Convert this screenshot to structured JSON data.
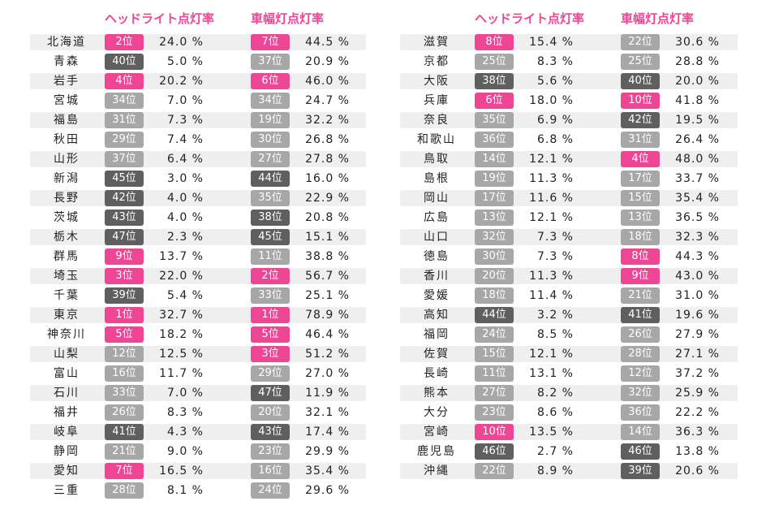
{
  "header": {
    "headlight_label": "ヘッドライト点灯率",
    "sidelight_label": "車幅灯点灯率"
  },
  "colors": {
    "pink": "#ee4595",
    "light_gray": "#a7a7a7",
    "dark_gray": "#5f5f5f"
  },
  "left_rows": [
    {
      "pref": "北海道",
      "h_rank": "2位",
      "h_pct": "24.0 %",
      "h_color": "pink",
      "s_rank": "7位",
      "s_pct": "44.5 %",
      "s_color": "pink"
    },
    {
      "pref": "青森",
      "h_rank": "40位",
      "h_pct": "5.0 %",
      "h_color": "dg",
      "s_rank": "37位",
      "s_pct": "20.9 %",
      "s_color": "lg"
    },
    {
      "pref": "岩手",
      "h_rank": "4位",
      "h_pct": "20.2 %",
      "h_color": "pink",
      "s_rank": "6位",
      "s_pct": "46.0 %",
      "s_color": "pink"
    },
    {
      "pref": "宮城",
      "h_rank": "34位",
      "h_pct": "7.0 %",
      "h_color": "lg",
      "s_rank": "34位",
      "s_pct": "24.7 %",
      "s_color": "lg"
    },
    {
      "pref": "福島",
      "h_rank": "31位",
      "h_pct": "7.3 %",
      "h_color": "lg",
      "s_rank": "19位",
      "s_pct": "32.2 %",
      "s_color": "lg"
    },
    {
      "pref": "秋田",
      "h_rank": "29位",
      "h_pct": "7.4 %",
      "h_color": "lg",
      "s_rank": "30位",
      "s_pct": "26.8 %",
      "s_color": "lg"
    },
    {
      "pref": "山形",
      "h_rank": "37位",
      "h_pct": "6.4 %",
      "h_color": "lg",
      "s_rank": "27位",
      "s_pct": "27.8 %",
      "s_color": "lg"
    },
    {
      "pref": "新潟",
      "h_rank": "45位",
      "h_pct": "3.0 %",
      "h_color": "dg",
      "s_rank": "44位",
      "s_pct": "16.0 %",
      "s_color": "dg"
    },
    {
      "pref": "長野",
      "h_rank": "42位",
      "h_pct": "4.0 %",
      "h_color": "dg",
      "s_rank": "35位",
      "s_pct": "22.9 %",
      "s_color": "lg"
    },
    {
      "pref": "茨城",
      "h_rank": "43位",
      "h_pct": "4.0 %",
      "h_color": "dg",
      "s_rank": "38位",
      "s_pct": "20.8 %",
      "s_color": "dg"
    },
    {
      "pref": "栃木",
      "h_rank": "47位",
      "h_pct": "2.3 %",
      "h_color": "dg",
      "s_rank": "45位",
      "s_pct": "15.1 %",
      "s_color": "dg"
    },
    {
      "pref": "群馬",
      "h_rank": "9位",
      "h_pct": "13.7 %",
      "h_color": "pink",
      "s_rank": "11位",
      "s_pct": "38.8 %",
      "s_color": "lg"
    },
    {
      "pref": "埼玉",
      "h_rank": "3位",
      "h_pct": "22.0 %",
      "h_color": "pink",
      "s_rank": "2位",
      "s_pct": "56.7 %",
      "s_color": "pink"
    },
    {
      "pref": "千葉",
      "h_rank": "39位",
      "h_pct": "5.4 %",
      "h_color": "dg",
      "s_rank": "33位",
      "s_pct": "25.1 %",
      "s_color": "lg"
    },
    {
      "pref": "東京",
      "h_rank": "1位",
      "h_pct": "32.7 %",
      "h_color": "pink",
      "s_rank": "1位",
      "s_pct": "78.9 %",
      "s_color": "pink"
    },
    {
      "pref": "神奈川",
      "h_rank": "5位",
      "h_pct": "18.2 %",
      "h_color": "pink",
      "s_rank": "5位",
      "s_pct": "46.4 %",
      "s_color": "pink"
    },
    {
      "pref": "山梨",
      "h_rank": "12位",
      "h_pct": "12.5 %",
      "h_color": "lg",
      "s_rank": "3位",
      "s_pct": "51.2 %",
      "s_color": "pink"
    },
    {
      "pref": "富山",
      "h_rank": "16位",
      "h_pct": "11.7 %",
      "h_color": "lg",
      "s_rank": "29位",
      "s_pct": "27.0 %",
      "s_color": "lg"
    },
    {
      "pref": "石川",
      "h_rank": "33位",
      "h_pct": "7.0 %",
      "h_color": "lg",
      "s_rank": "47位",
      "s_pct": "11.9 %",
      "s_color": "dg"
    },
    {
      "pref": "福井",
      "h_rank": "26位",
      "h_pct": "8.3 %",
      "h_color": "lg",
      "s_rank": "20位",
      "s_pct": "32.1 %",
      "s_color": "lg"
    },
    {
      "pref": "岐阜",
      "h_rank": "41位",
      "h_pct": "4.3 %",
      "h_color": "dg",
      "s_rank": "43位",
      "s_pct": "17.4 %",
      "s_color": "dg"
    },
    {
      "pref": "静岡",
      "h_rank": "21位",
      "h_pct": "9.0 %",
      "h_color": "lg",
      "s_rank": "23位",
      "s_pct": "29.9 %",
      "s_color": "lg"
    },
    {
      "pref": "愛知",
      "h_rank": "7位",
      "h_pct": "16.5 %",
      "h_color": "pink",
      "s_rank": "16位",
      "s_pct": "35.4 %",
      "s_color": "lg"
    },
    {
      "pref": "三重",
      "h_rank": "28位",
      "h_pct": "8.1 %",
      "h_color": "lg",
      "s_rank": "24位",
      "s_pct": "29.6 %",
      "s_color": "lg"
    }
  ],
  "right_rows": [
    {
      "pref": "滋賀",
      "h_rank": "8位",
      "h_pct": "15.4 %",
      "h_color": "pink",
      "s_rank": "22位",
      "s_pct": "30.6 %",
      "s_color": "lg"
    },
    {
      "pref": "京都",
      "h_rank": "25位",
      "h_pct": "8.3 %",
      "h_color": "lg",
      "s_rank": "25位",
      "s_pct": "28.8 %",
      "s_color": "lg"
    },
    {
      "pref": "大阪",
      "h_rank": "38位",
      "h_pct": "5.6 %",
      "h_color": "dg",
      "s_rank": "40位",
      "s_pct": "20.0 %",
      "s_color": "dg"
    },
    {
      "pref": "兵庫",
      "h_rank": "6位",
      "h_pct": "18.0 %",
      "h_color": "pink",
      "s_rank": "10位",
      "s_pct": "41.8 %",
      "s_color": "pink"
    },
    {
      "pref": "奈良",
      "h_rank": "35位",
      "h_pct": "6.9 %",
      "h_color": "lg",
      "s_rank": "42位",
      "s_pct": "19.5 %",
      "s_color": "dg"
    },
    {
      "pref": "和歌山",
      "h_rank": "36位",
      "h_pct": "6.8 %",
      "h_color": "lg",
      "s_rank": "31位",
      "s_pct": "26.4 %",
      "s_color": "lg"
    },
    {
      "pref": "鳥取",
      "h_rank": "14位",
      "h_pct": "12.1 %",
      "h_color": "lg",
      "s_rank": "4位",
      "s_pct": "48.0 %",
      "s_color": "pink"
    },
    {
      "pref": "島根",
      "h_rank": "19位",
      "h_pct": "11.3 %",
      "h_color": "lg",
      "s_rank": "17位",
      "s_pct": "33.7 %",
      "s_color": "lg"
    },
    {
      "pref": "岡山",
      "h_rank": "17位",
      "h_pct": "11.6 %",
      "h_color": "lg",
      "s_rank": "15位",
      "s_pct": "35.4 %",
      "s_color": "lg"
    },
    {
      "pref": "広島",
      "h_rank": "13位",
      "h_pct": "12.1 %",
      "h_color": "lg",
      "s_rank": "13位",
      "s_pct": "36.5 %",
      "s_color": "lg"
    },
    {
      "pref": "山口",
      "h_rank": "32位",
      "h_pct": "7.3 %",
      "h_color": "lg",
      "s_rank": "18位",
      "s_pct": "32.3 %",
      "s_color": "lg"
    },
    {
      "pref": "徳島",
      "h_rank": "30位",
      "h_pct": "7.3 %",
      "h_color": "lg",
      "s_rank": "8位",
      "s_pct": "44.3 %",
      "s_color": "pink"
    },
    {
      "pref": "香川",
      "h_rank": "20位",
      "h_pct": "11.3 %",
      "h_color": "lg",
      "s_rank": "9位",
      "s_pct": "43.0 %",
      "s_color": "pink"
    },
    {
      "pref": "愛媛",
      "h_rank": "18位",
      "h_pct": "11.4 %",
      "h_color": "lg",
      "s_rank": "21位",
      "s_pct": "31.0 %",
      "s_color": "lg"
    },
    {
      "pref": "高知",
      "h_rank": "44位",
      "h_pct": "3.2 %",
      "h_color": "dg",
      "s_rank": "41位",
      "s_pct": "19.6 %",
      "s_color": "dg"
    },
    {
      "pref": "福岡",
      "h_rank": "24位",
      "h_pct": "8.5 %",
      "h_color": "lg",
      "s_rank": "26位",
      "s_pct": "27.9 %",
      "s_color": "lg"
    },
    {
      "pref": "佐賀",
      "h_rank": "15位",
      "h_pct": "12.1 %",
      "h_color": "lg",
      "s_rank": "28位",
      "s_pct": "27.1 %",
      "s_color": "lg"
    },
    {
      "pref": "長崎",
      "h_rank": "11位",
      "h_pct": "13.1 %",
      "h_color": "lg",
      "s_rank": "12位",
      "s_pct": "37.2 %",
      "s_color": "lg"
    },
    {
      "pref": "熊本",
      "h_rank": "27位",
      "h_pct": "8.2 %",
      "h_color": "lg",
      "s_rank": "32位",
      "s_pct": "25.9 %",
      "s_color": "lg"
    },
    {
      "pref": "大分",
      "h_rank": "23位",
      "h_pct": "8.6 %",
      "h_color": "lg",
      "s_rank": "36位",
      "s_pct": "22.2 %",
      "s_color": "lg"
    },
    {
      "pref": "宮崎",
      "h_rank": "10位",
      "h_pct": "13.5 %",
      "h_color": "pink",
      "s_rank": "14位",
      "s_pct": "36.3 %",
      "s_color": "lg"
    },
    {
      "pref": "鹿児島",
      "h_rank": "46位",
      "h_pct": "2.7 %",
      "h_color": "dg",
      "s_rank": "46位",
      "s_pct": "13.8 %",
      "s_color": "dg"
    },
    {
      "pref": "沖縄",
      "h_rank": "22位",
      "h_pct": "8.9 %",
      "h_color": "lg",
      "s_rank": "39位",
      "s_pct": "20.6 %",
      "s_color": "dg"
    }
  ]
}
